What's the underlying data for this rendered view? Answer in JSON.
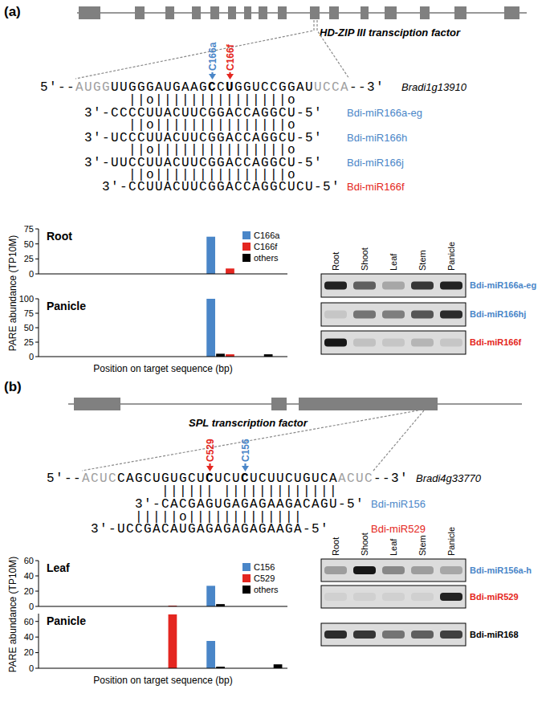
{
  "panels": [
    {
      "label": "(a)",
      "gene": "HD-ZIP III transciption factor",
      "target": {
        "sequence": "5'--AUGGUUGGGAUGAAGCCUGGUCCGGAUUCCA--3'",
        "name": "Bradi1g13910"
      },
      "cleavage_sites": [
        {
          "label": "C166a",
          "color": "#4a86c8"
        },
        {
          "label": "C166f",
          "color": "#e42620"
        }
      ],
      "alignments": [
        {
          "pairing": "||o|||||||||||||||o",
          "mirna": "3'-CCCCUUACUUCGGACCAGGCU-5'",
          "name": "Bdi-miR166a-eg",
          "color": "#4a86c8"
        },
        {
          "pairing": "||o|||||||||||||||o",
          "mirna": "3'-UCCCUUACUUCGGACCAGGCU-5'",
          "name": "Bdi-miR166h",
          "color": "#4a86c8"
        },
        {
          "pairing": "||o|||||||||||||||o",
          "mirna": "3'-UUCCUUACUUCGGACCAGGCU-5'",
          "name": "Bdi-miR166j",
          "color": "#4a86c8"
        },
        {
          "pairing": "||o|||||||||||||||o",
          "mirna": "3'-CCUUACUUCGGACCAGGCUCU-5'",
          "name": "Bdi-miR166f",
          "color": "#e42620"
        }
      ],
      "blot": {
        "lanes": [
          "Root",
          "Shoot",
          "Leaf",
          "Stem",
          "Panicle"
        ],
        "rows": [
          {
            "name": "Bdi-miR166a-eg",
            "color": "#4a86c8",
            "intensities": [
              0.9,
              0.6,
              0.25,
              0.8,
              0.9
            ]
          },
          {
            "name": "Bdi-miR166hj",
            "color": "#4a86c8",
            "intensities": [
              0.1,
              0.5,
              0.45,
              0.65,
              0.85
            ]
          },
          {
            "name": "Bdi-miR166f",
            "color": "#e42620",
            "intensities": [
              0.95,
              0.12,
              0.1,
              0.18,
              0.1
            ]
          }
        ]
      }
    },
    {
      "label": "(b)",
      "gene": "SPL transcription factor",
      "target": {
        "sequence": "5'--ACUCCAGCUGUGCUCUCUCUCUUCUGUCAACUC--3'",
        "name": "Bradi4g33770"
      },
      "cleavage_sites": [
        {
          "label": "C529",
          "color": "#e42620"
        },
        {
          "label": "C156",
          "color": "#4a86c8"
        }
      ],
      "alignments": [
        {
          "pairing": "|||||| |||||||||||||",
          "mirna": "3'-CACGAGUGAGAGAAGACAGU-5'",
          "name": "Bdi-miR156",
          "color": "#4a86c8"
        },
        {
          "pairing": "|||||o|||||||||||||",
          "mirna": "3'-UCCGACAUGAGAGAGAGAAGA-5'",
          "name": "Bdi-miR529",
          "color": "#e42620"
        }
      ],
      "blot": {
        "lanes": [
          "Root",
          "Shoot",
          "Leaf",
          "Stem",
          "Panicle"
        ],
        "rows": [
          {
            "name": "Bdi-miR156a-h",
            "color": "#4a86c8",
            "intensities": [
              0.3,
              0.95,
              0.4,
              0.3,
              0.25
            ]
          },
          {
            "name": "Bdi-miR529",
            "color": "#e42620",
            "intensities": [
              0.05,
              0.05,
              0.05,
              0.05,
              0.9
            ]
          },
          {
            "name": "Bdi-miR168",
            "color": "#000000",
            "intensities": [
              0.85,
              0.8,
              0.5,
              0.6,
              0.75
            ]
          }
        ]
      }
    }
  ],
  "chart_data": [
    {
      "type": "bar",
      "title": "Root",
      "y_label": "PARE abundance (TP10M)",
      "xlim": [
        0,
        52
      ],
      "ylim": [
        0,
        75
      ],
      "yticks": [
        0,
        25,
        50,
        75
      ],
      "tick_labels": "y",
      "legend": "top-right",
      "series": [
        {
          "name": "C166a",
          "color": "#4a86c8",
          "x": [
            36
          ],
          "values": [
            62
          ]
        },
        {
          "name": "C166f",
          "color": "#e42620",
          "x": [
            40
          ],
          "values": [
            9
          ]
        },
        {
          "name": "others",
          "color": "#000000",
          "x": [],
          "values": []
        }
      ]
    },
    {
      "type": "bar",
      "title": "Panicle",
      "x_label": "Position on target sequence (bp)",
      "xlim": [
        0,
        52
      ],
      "ylim": [
        0,
        100
      ],
      "yticks": [
        0,
        25,
        50,
        75,
        100
      ],
      "tick_labels": "y",
      "series": [
        {
          "color": "#4a86c8",
          "x": [
            36
          ],
          "values": [
            100
          ]
        },
        {
          "color": "#e42620",
          "x": [
            40
          ],
          "values": [
            4
          ]
        },
        {
          "color": "#000000",
          "x": [
            38,
            48
          ],
          "values": [
            5,
            4
          ]
        }
      ]
    },
    {
      "type": "bar",
      "title": "Leaf",
      "y_label": "PARE abundance (TP10M)",
      "xlim": [
        0,
        52
      ],
      "ylim": [
        0,
        60
      ],
      "yticks": [
        0,
        20,
        40,
        60
      ],
      "tick_labels": "y",
      "legend": "top-right",
      "series": [
        {
          "name": "C156",
          "color": "#4a86c8",
          "x": [
            36
          ],
          "values": [
            27
          ]
        },
        {
          "name": "C529",
          "color": "#e42620",
          "x": [
            28
          ],
          "values": [
            1
          ]
        },
        {
          "name": "others",
          "color": "#000000",
          "x": [
            38
          ],
          "values": [
            3
          ]
        }
      ]
    },
    {
      "type": "bar",
      "title": "Panicle",
      "x_label": "Position on target sequence (bp)",
      "xlim": [
        0,
        52
      ],
      "ylim": [
        0,
        70
      ],
      "yticks": [
        0,
        20,
        40,
        60
      ],
      "tick_labels": "y",
      "series": [
        {
          "color": "#4a86c8",
          "x": [
            36
          ],
          "values": [
            35
          ]
        },
        {
          "color": "#e42620",
          "x": [
            28
          ],
          "values": [
            69
          ]
        },
        {
          "color": "#000000",
          "x": [
            38,
            50
          ],
          "values": [
            2,
            5
          ]
        }
      ]
    }
  ]
}
